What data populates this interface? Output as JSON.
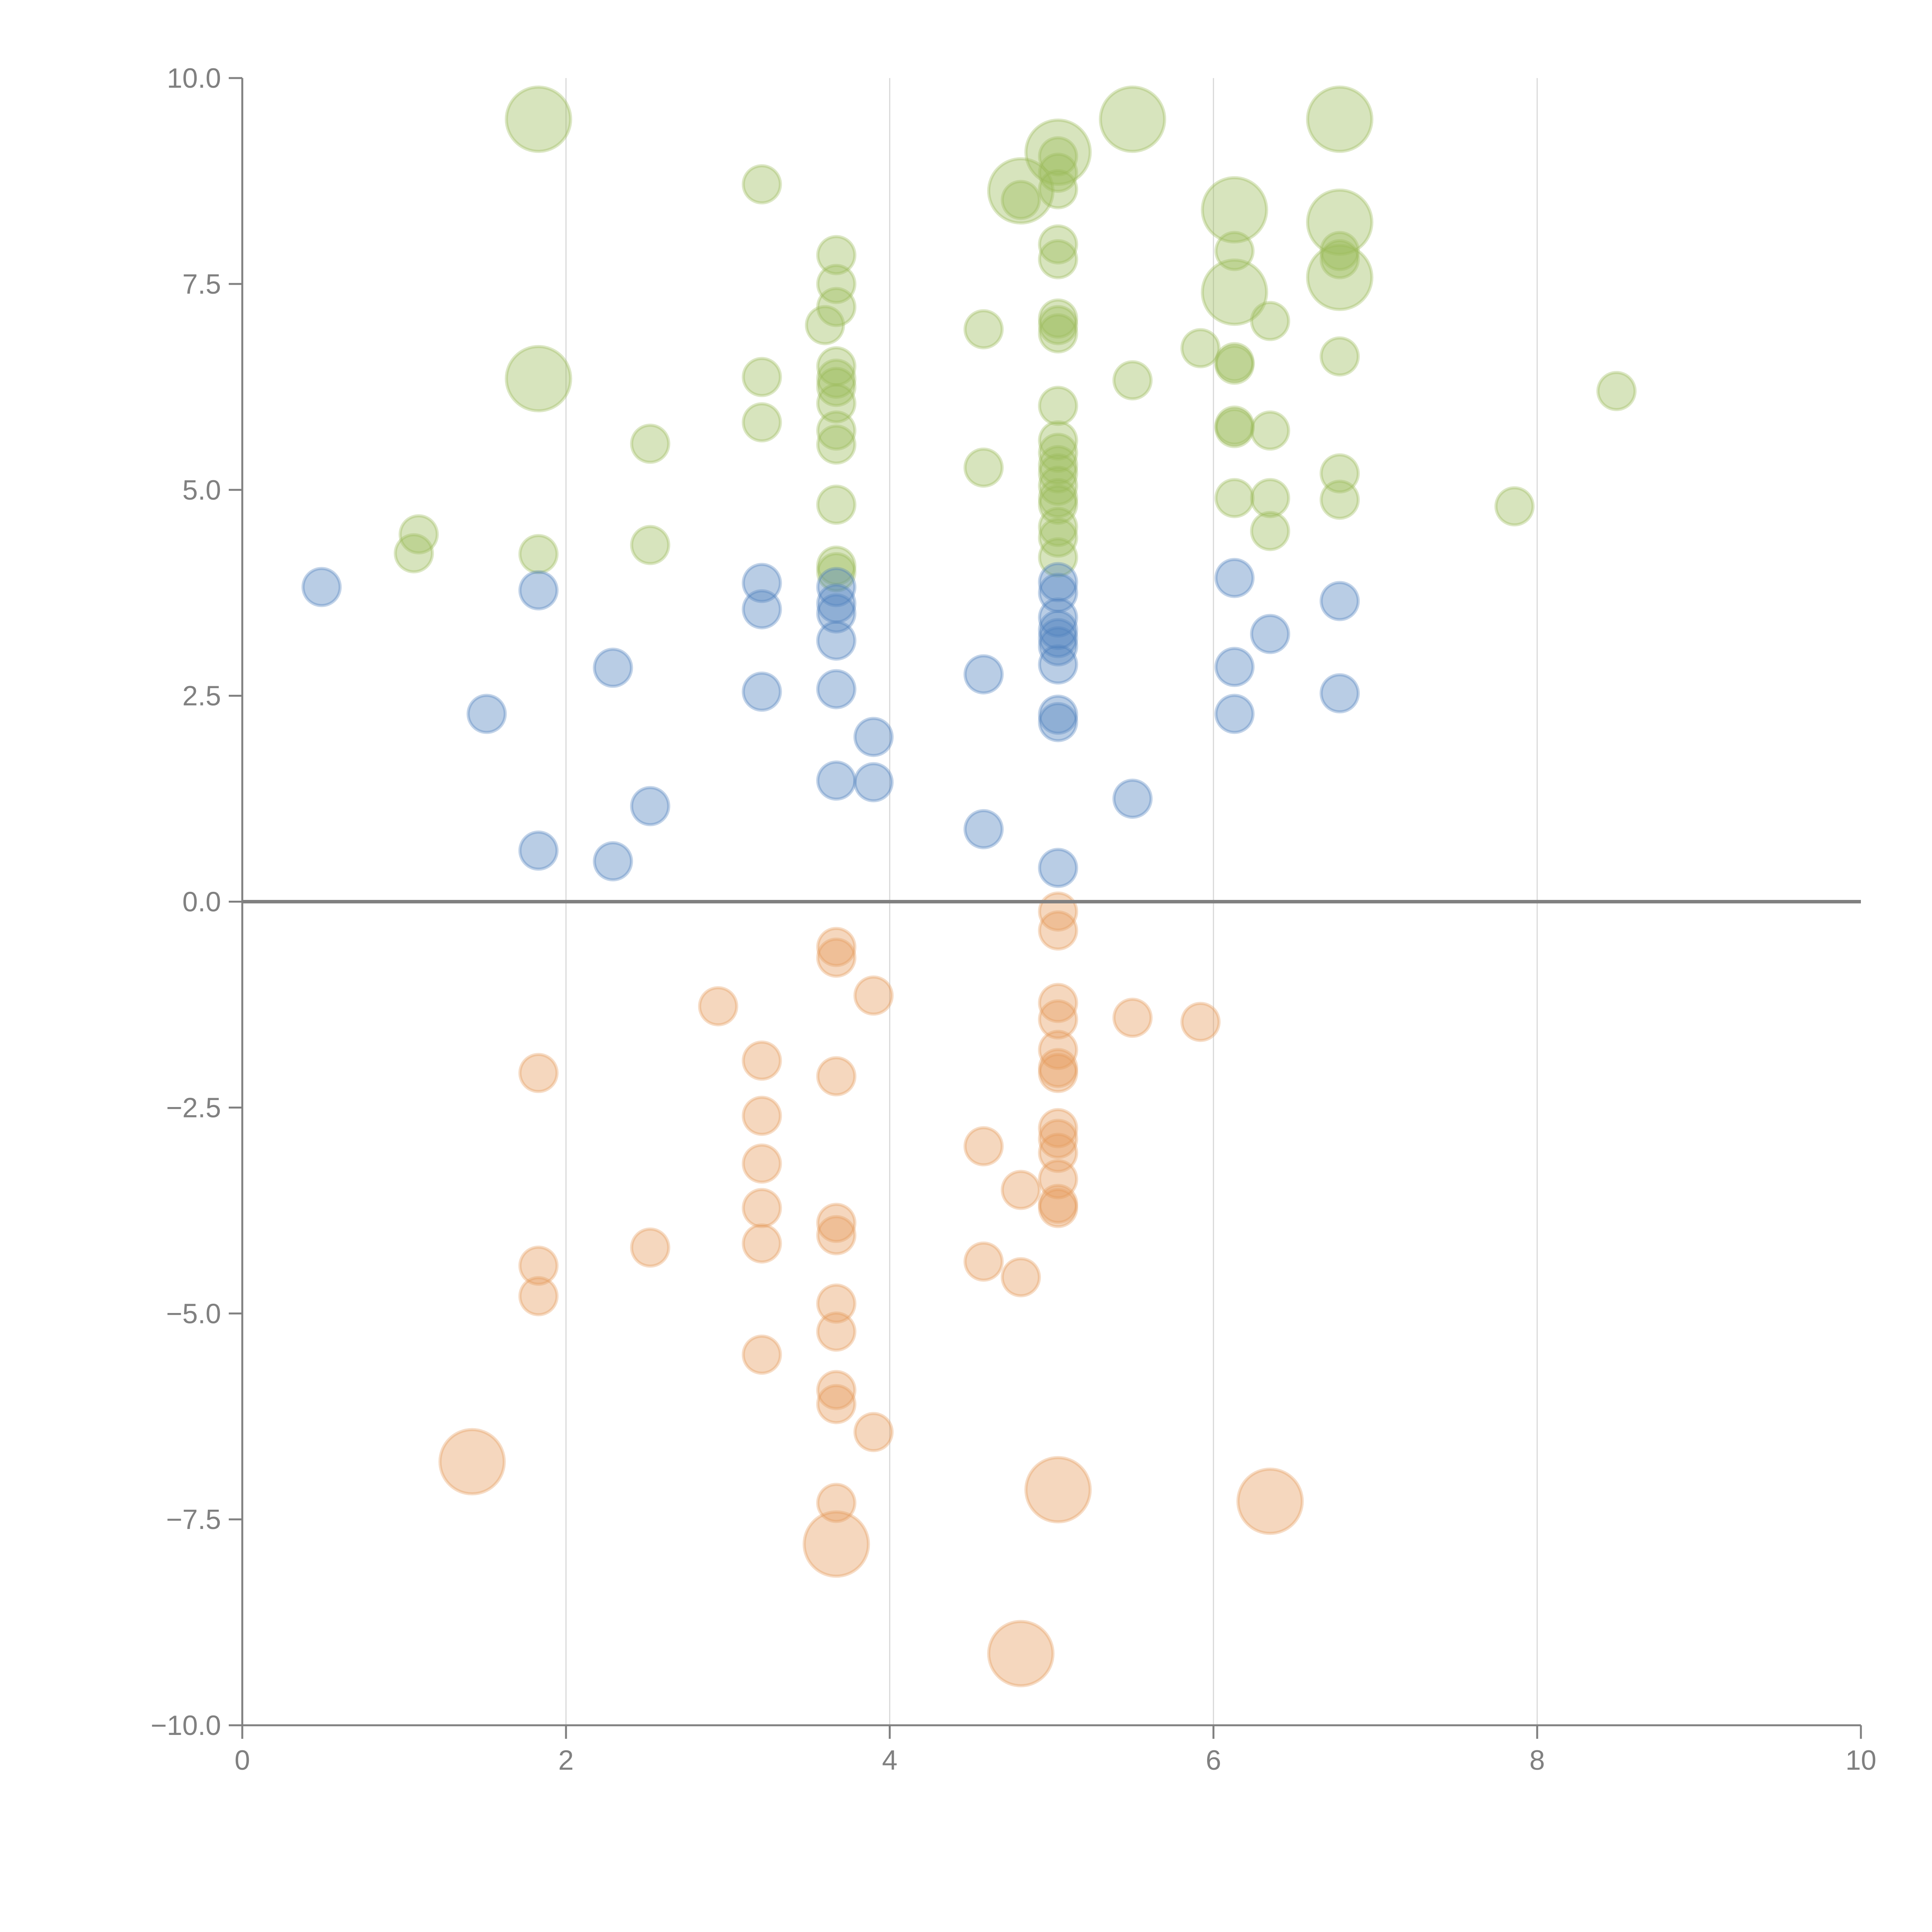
{
  "chart_data": {
    "type": "scatter",
    "subtype": "bubble",
    "title": "",
    "xlabel": "",
    "ylabel": "",
    "xlim": [
      0,
      10
    ],
    "ylim": [
      -10,
      10
    ],
    "x_ticks": [
      0,
      2,
      4,
      6,
      8,
      10
    ],
    "x_tick_labels": [
      "0",
      "2",
      "4",
      "6",
      "8",
      "10"
    ],
    "y_ticks": [
      10,
      7.5,
      5,
      2.5,
      0,
      -2.5,
      -5,
      -7.5,
      -10
    ],
    "y_tick_labels": [
      "10.0",
      "7.5",
      "5.0",
      "2.5",
      "0.0",
      "−2.5",
      "−5.0",
      "−7.5",
      "−10.0"
    ],
    "grid": "vertical",
    "legend": "none",
    "series": [
      {
        "name": "green",
        "color": "#9bbb59",
        "points": [
          [
            1.83,
            9.5,
            3
          ],
          [
            5.5,
            9.5,
            3
          ],
          [
            6.78,
            9.5,
            3
          ],
          [
            5.04,
            9.1,
            3
          ],
          [
            4.81,
            8.63,
            3
          ],
          [
            6.13,
            8.4,
            3
          ],
          [
            6.78,
            8.25,
            3
          ],
          [
            6.13,
            7.4,
            3
          ],
          [
            6.78,
            7.58,
            3
          ],
          [
            1.83,
            6.35,
            3
          ],
          [
            3.21,
            8.71,
            1
          ],
          [
            3.67,
            7.85,
            1
          ],
          [
            3.67,
            7.5,
            1
          ],
          [
            3.67,
            7.22,
            1
          ],
          [
            3.6,
            7.0,
            1
          ],
          [
            3.67,
            6.5,
            1
          ],
          [
            3.67,
            6.35,
            1
          ],
          [
            3.67,
            6.25,
            1
          ],
          [
            3.67,
            6.05,
            1
          ],
          [
            3.67,
            5.72,
            1
          ],
          [
            3.67,
            5.55,
            1
          ],
          [
            3.67,
            4.82,
            1
          ],
          [
            3.67,
            4.08,
            1
          ],
          [
            3.67,
            4.0,
            1
          ],
          [
            3.21,
            6.37,
            1
          ],
          [
            3.21,
            5.82,
            1
          ],
          [
            2.52,
            5.56,
            1
          ],
          [
            2.52,
            4.33,
            1
          ],
          [
            1.83,
            4.22,
            1
          ],
          [
            1.09,
            4.46,
            1
          ],
          [
            1.06,
            4.23,
            1
          ],
          [
            4.58,
            6.95,
            1
          ],
          [
            4.58,
            5.27,
            1
          ],
          [
            4.81,
            8.52,
            1
          ],
          [
            5.04,
            9.05,
            1
          ],
          [
            5.04,
            8.85,
            1
          ],
          [
            5.04,
            8.65,
            1
          ],
          [
            5.04,
            7.98,
            1
          ],
          [
            5.04,
            7.8,
            1
          ],
          [
            5.04,
            7.08,
            1
          ],
          [
            5.04,
            7.0,
            1
          ],
          [
            5.04,
            6.9,
            1
          ],
          [
            5.04,
            6.02,
            1
          ],
          [
            5.04,
            5.6,
            1
          ],
          [
            5.04,
            5.45,
            1
          ],
          [
            5.04,
            5.3,
            1
          ],
          [
            5.04,
            5.2,
            1
          ],
          [
            5.04,
            5.05,
            1
          ],
          [
            5.04,
            4.9,
            1
          ],
          [
            5.04,
            4.82,
            1
          ],
          [
            5.04,
            4.55,
            1
          ],
          [
            5.04,
            4.42,
            1
          ],
          [
            5.04,
            4.18,
            1
          ],
          [
            5.5,
            6.33,
            1
          ],
          [
            5.92,
            6.72,
            1
          ],
          [
            6.13,
            7.9,
            1
          ],
          [
            6.13,
            6.55,
            1
          ],
          [
            6.13,
            6.52,
            1
          ],
          [
            6.13,
            5.78,
            1
          ],
          [
            6.13,
            5.75,
            1
          ],
          [
            6.13,
            4.9,
            1
          ],
          [
            6.35,
            7.05,
            1
          ],
          [
            6.35,
            5.72,
            1
          ],
          [
            6.35,
            4.9,
            1
          ],
          [
            6.35,
            4.5,
            1
          ],
          [
            6.78,
            7.9,
            1
          ],
          [
            6.78,
            7.8,
            1
          ],
          [
            6.78,
            6.62,
            1
          ],
          [
            6.78,
            5.2,
            1
          ],
          [
            6.78,
            4.88,
            1
          ],
          [
            7.86,
            4.8,
            1
          ],
          [
            8.49,
            6.2,
            1
          ]
        ]
      },
      {
        "name": "blue",
        "color": "#4f81bd",
        "points": [
          [
            0.49,
            3.82,
            1
          ],
          [
            1.51,
            2.28,
            1
          ],
          [
            1.83,
            3.78,
            1
          ],
          [
            1.83,
            0.62,
            1
          ],
          [
            2.29,
            2.84,
            1
          ],
          [
            2.29,
            0.49,
            1
          ],
          [
            2.52,
            1.16,
            1
          ],
          [
            3.21,
            3.87,
            1
          ],
          [
            3.21,
            3.55,
            1
          ],
          [
            3.21,
            2.55,
            1
          ],
          [
            3.67,
            3.82,
            1
          ],
          [
            3.67,
            3.62,
            1
          ],
          [
            3.67,
            3.5,
            1
          ],
          [
            3.67,
            3.17,
            1
          ],
          [
            3.67,
            2.58,
            1
          ],
          [
            3.67,
            1.47,
            1
          ],
          [
            3.9,
            2.0,
            1
          ],
          [
            3.9,
            1.45,
            1
          ],
          [
            4.58,
            2.76,
            1
          ],
          [
            4.58,
            0.88,
            1
          ],
          [
            5.04,
            3.88,
            1
          ],
          [
            5.04,
            3.75,
            1
          ],
          [
            5.04,
            3.45,
            1
          ],
          [
            5.04,
            3.3,
            1
          ],
          [
            5.04,
            3.2,
            1
          ],
          [
            5.04,
            3.1,
            1
          ],
          [
            5.04,
            2.88,
            1
          ],
          [
            5.04,
            2.27,
            1
          ],
          [
            5.04,
            2.18,
            1
          ],
          [
            5.04,
            0.41,
            1
          ],
          [
            5.5,
            1.25,
            1
          ],
          [
            6.13,
            3.93,
            1
          ],
          [
            6.13,
            2.85,
            1
          ],
          [
            6.13,
            2.28,
            1
          ],
          [
            6.35,
            3.25,
            1
          ],
          [
            6.78,
            3.65,
            1
          ],
          [
            6.78,
            2.53,
            1
          ]
        ]
      },
      {
        "name": "orange",
        "color": "#e69a5c",
        "points": [
          [
            1.83,
            -2.08,
            1
          ],
          [
            1.83,
            -4.42,
            1
          ],
          [
            1.83,
            -4.79,
            1
          ],
          [
            2.52,
            -4.2,
            1
          ],
          [
            2.94,
            -1.27,
            1
          ],
          [
            3.21,
            -1.93,
            1
          ],
          [
            3.21,
            -2.6,
            1
          ],
          [
            3.21,
            -3.18,
            1
          ],
          [
            3.21,
            -3.72,
            1
          ],
          [
            3.21,
            -4.15,
            1
          ],
          [
            3.21,
            -5.5,
            1
          ],
          [
            3.67,
            -0.55,
            1
          ],
          [
            3.67,
            -0.68,
            1
          ],
          [
            3.67,
            -2.12,
            1
          ],
          [
            3.67,
            -3.9,
            1
          ],
          [
            3.67,
            -4.05,
            1
          ],
          [
            3.67,
            -4.88,
            1
          ],
          [
            3.67,
            -5.22,
            1
          ],
          [
            3.67,
            -5.93,
            1
          ],
          [
            3.67,
            -6.1,
            1
          ],
          [
            3.67,
            -7.3,
            1
          ],
          [
            3.9,
            -1.14,
            1
          ],
          [
            3.9,
            -6.44,
            1
          ],
          [
            4.58,
            -2.97,
            1
          ],
          [
            4.58,
            -4.37,
            1
          ],
          [
            4.81,
            -3.5,
            1
          ],
          [
            4.81,
            -4.56,
            1
          ],
          [
            5.04,
            -0.12,
            1
          ],
          [
            5.04,
            -0.35,
            1
          ],
          [
            5.04,
            -1.23,
            1
          ],
          [
            5.04,
            -1.43,
            1
          ],
          [
            5.04,
            -1.8,
            1
          ],
          [
            5.04,
            -2.02,
            1
          ],
          [
            5.04,
            -2.08,
            1
          ],
          [
            5.04,
            -2.75,
            1
          ],
          [
            5.04,
            -2.88,
            1
          ],
          [
            5.04,
            -3.05,
            1
          ],
          [
            5.04,
            -3.37,
            1
          ],
          [
            5.04,
            -3.67,
            1
          ],
          [
            5.04,
            -3.72,
            1
          ],
          [
            5.5,
            -1.41,
            1
          ],
          [
            5.92,
            -1.46,
            1
          ],
          [
            1.42,
            -6.8,
            3
          ],
          [
            3.67,
            -7.8,
            3
          ],
          [
            5.04,
            -7.14,
            3
          ],
          [
            6.35,
            -7.28,
            3
          ],
          [
            4.81,
            -9.13,
            3
          ]
        ]
      }
    ]
  }
}
